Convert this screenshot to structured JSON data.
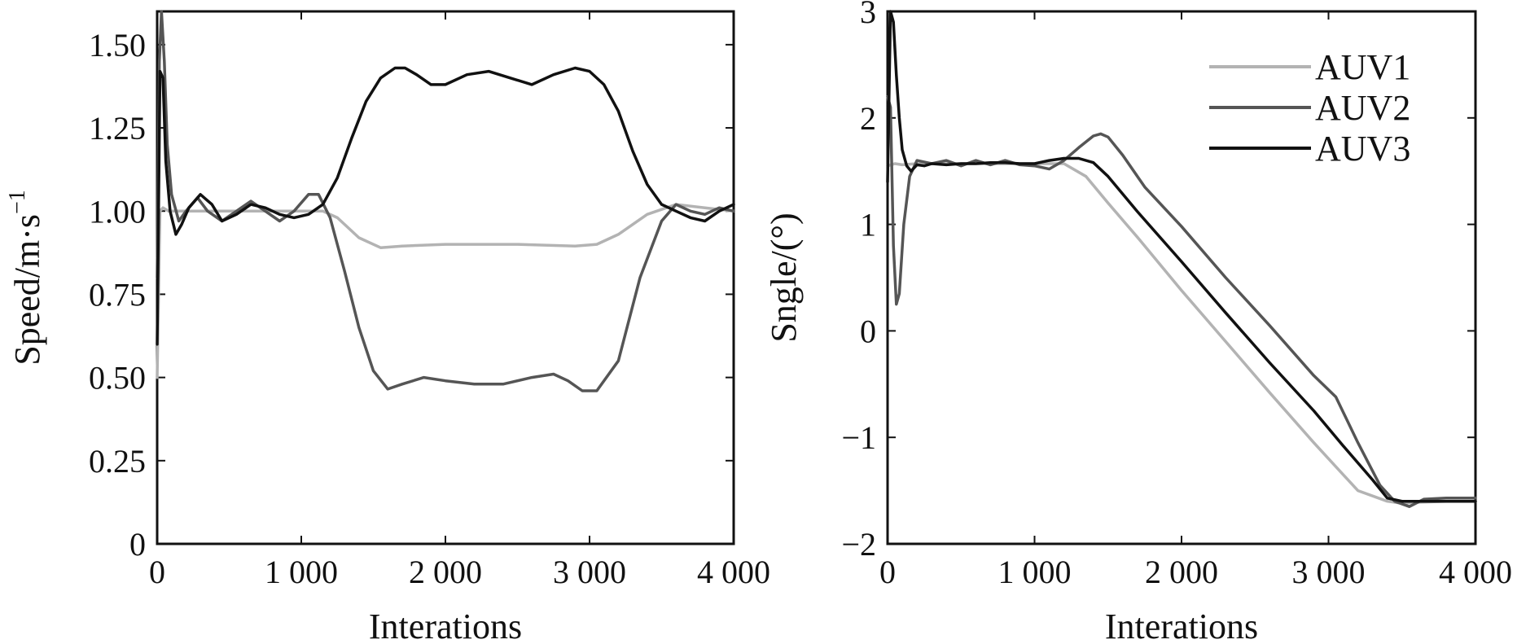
{
  "chart_data": [
    {
      "type": "line",
      "xlabel": "Interations",
      "ylabel": "Speed/m·s",
      "ylabel_sup": "−1",
      "xlim": [
        0,
        4000
      ],
      "ylim": [
        0,
        1.6
      ],
      "x_ticks": [
        0,
        1000,
        2000,
        3000,
        4000
      ],
      "x_tick_labels": [
        "0",
        "1 000",
        "2 000",
        "3 000",
        "4 000"
      ],
      "y_ticks": [
        0,
        0.25,
        0.5,
        0.75,
        1.0,
        1.25,
        1.5
      ],
      "y_tick_labels": [
        "0",
        "0.25",
        "0.50",
        "0.75",
        "1.00",
        "1.25",
        "1.50"
      ],
      "grid": false,
      "series": [
        {
          "color": "#b3b3b3",
          "x": [
            0,
            20,
            40,
            80,
            150,
            300,
            500,
            800,
            1000,
            1150,
            1250,
            1400,
            1550,
            1700,
            2000,
            2500,
            2900,
            3050,
            3200,
            3400,
            3600,
            3800,
            4000
          ],
          "y": [
            0.5,
            1.0,
            1.01,
            1.0,
            1.0,
            1.0,
            1.0,
            1.0,
            1.0,
            1.0,
            0.98,
            0.92,
            0.89,
            0.895,
            0.9,
            0.9,
            0.895,
            0.9,
            0.93,
            0.99,
            1.02,
            1.01,
            1.0
          ]
        },
        {
          "color": "#555555",
          "x": [
            0,
            15,
            30,
            50,
            70,
            100,
            150,
            200,
            280,
            350,
            450,
            550,
            650,
            750,
            850,
            950,
            1050,
            1120,
            1200,
            1300,
            1400,
            1500,
            1600,
            1700,
            1850,
            2000,
            2200,
            2400,
            2600,
            2750,
            2850,
            2950,
            3050,
            3200,
            3350,
            3500,
            3600,
            3700,
            3800,
            3900,
            4000
          ],
          "y": [
            0.8,
            1.45,
            1.6,
            1.45,
            1.2,
            1.05,
            0.97,
            1.0,
            1.04,
            1.0,
            0.97,
            1.0,
            1.03,
            1.0,
            0.97,
            1.0,
            1.05,
            1.05,
            0.98,
            0.82,
            0.65,
            0.52,
            0.465,
            0.48,
            0.5,
            0.49,
            0.48,
            0.48,
            0.5,
            0.51,
            0.49,
            0.46,
            0.46,
            0.55,
            0.8,
            0.97,
            1.02,
            1.0,
            0.99,
            1.01,
            1.0
          ]
        },
        {
          "color": "#111111",
          "x": [
            0,
            20,
            40,
            60,
            90,
            130,
            170,
            220,
            300,
            380,
            450,
            550,
            650,
            750,
            850,
            950,
            1050,
            1150,
            1250,
            1350,
            1450,
            1550,
            1650,
            1720,
            1800,
            1900,
            2000,
            2150,
            2300,
            2450,
            2600,
            2750,
            2900,
            3000,
            3100,
            3200,
            3300,
            3400,
            3500,
            3600,
            3700,
            3800,
            3900,
            4000
          ],
          "y": [
            0.6,
            1.42,
            1.4,
            1.15,
            1.0,
            0.93,
            0.96,
            1.01,
            1.05,
            1.02,
            0.97,
            0.99,
            1.02,
            1.01,
            0.99,
            0.98,
            0.99,
            1.02,
            1.1,
            1.22,
            1.33,
            1.4,
            1.43,
            1.43,
            1.41,
            1.38,
            1.38,
            1.41,
            1.42,
            1.4,
            1.38,
            1.41,
            1.43,
            1.42,
            1.38,
            1.3,
            1.18,
            1.08,
            1.02,
            1.0,
            0.98,
            0.97,
            1.0,
            1.02
          ]
        }
      ]
    },
    {
      "type": "line",
      "xlabel": "Interations",
      "ylabel": "Sngle/(°)",
      "xlim": [
        0,
        4000
      ],
      "ylim": [
        -2,
        3
      ],
      "x_ticks": [
        0,
        1000,
        2000,
        3000,
        4000
      ],
      "x_tick_labels": [
        "0",
        "1 000",
        "2 000",
        "3 000",
        "4 000"
      ],
      "y_ticks": [
        -2,
        -1,
        0,
        1,
        2,
        3
      ],
      "y_tick_labels": [
        "−2",
        "−1",
        "0",
        "1",
        "2",
        "3"
      ],
      "grid": false,
      "legend_position": "top-right",
      "series": [
        {
          "name": "AUV1",
          "color": "#b3b3b3",
          "x": [
            0,
            50,
            100,
            200,
            400,
            600,
            800,
            1000,
            1100,
            1200,
            1350,
            1500,
            1700,
            2000,
            2300,
            2600,
            2900,
            3200,
            3400,
            3500,
            3600,
            3800,
            4000
          ],
          "y": [
            1.55,
            1.57,
            1.56,
            1.57,
            1.57,
            1.57,
            1.57,
            1.57,
            1.57,
            1.57,
            1.45,
            1.2,
            0.88,
            0.38,
            -0.1,
            -0.58,
            -1.05,
            -1.5,
            -1.6,
            -1.62,
            -1.61,
            -1.6,
            -1.6
          ]
        },
        {
          "name": "AUV2",
          "color": "#555555",
          "x": [
            0,
            20,
            40,
            60,
            80,
            110,
            150,
            200,
            300,
            400,
            500,
            600,
            700,
            800,
            900,
            1000,
            1100,
            1200,
            1300,
            1400,
            1450,
            1500,
            1600,
            1750,
            2000,
            2300,
            2600,
            2900,
            3050,
            3200,
            3350,
            3450,
            3550,
            3650,
            3800,
            4000
          ],
          "y": [
            2.2,
            2.1,
            0.8,
            0.25,
            0.35,
            1.0,
            1.45,
            1.6,
            1.57,
            1.6,
            1.55,
            1.6,
            1.56,
            1.6,
            1.56,
            1.55,
            1.52,
            1.6,
            1.72,
            1.83,
            1.85,
            1.82,
            1.65,
            1.35,
            0.98,
            0.5,
            0.05,
            -0.42,
            -0.62,
            -1.05,
            -1.45,
            -1.6,
            -1.65,
            -1.58,
            -1.57,
            -1.57
          ]
        },
        {
          "name": "AUV3",
          "color": "#111111",
          "x": [
            0,
            20,
            40,
            60,
            80,
            100,
            130,
            160,
            200,
            250,
            300,
            400,
            500,
            600,
            700,
            800,
            900,
            1000,
            1100,
            1200,
            1300,
            1400,
            1500,
            1700,
            2000,
            2300,
            2600,
            2900,
            3100,
            3300,
            3400,
            3500,
            3600,
            3800,
            4000
          ],
          "y": [
            1.4,
            3.0,
            2.9,
            2.4,
            2.0,
            1.7,
            1.55,
            1.5,
            1.56,
            1.55,
            1.57,
            1.56,
            1.57,
            1.57,
            1.58,
            1.58,
            1.57,
            1.57,
            1.6,
            1.62,
            1.62,
            1.58,
            1.45,
            1.12,
            0.65,
            0.17,
            -0.3,
            -0.75,
            -1.08,
            -1.4,
            -1.57,
            -1.6,
            -1.6,
            -1.6,
            -1.6
          ]
        }
      ]
    }
  ]
}
